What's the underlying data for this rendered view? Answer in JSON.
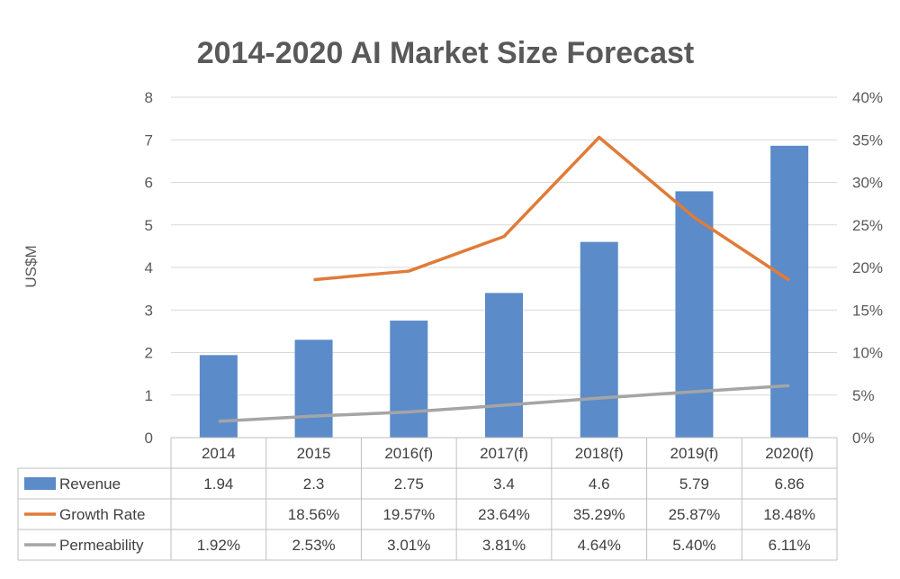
{
  "chart_data": {
    "type": "bar",
    "title": "2014-2020 AI Market Size Forecast",
    "ylabel": "US$M",
    "ylim": [
      0,
      8
    ],
    "y2lim": [
      0,
      40
    ],
    "y_ticks": [
      "0",
      "1",
      "2",
      "3",
      "4",
      "5",
      "6",
      "7",
      "8"
    ],
    "y2_ticks": [
      "0%",
      "5%",
      "10%",
      "15%",
      "20%",
      "25%",
      "30%",
      "35%",
      "40%"
    ],
    "grid": true,
    "categories": [
      "2014",
      "2015",
      "2016(f)",
      "2017(f)",
      "2018(f)",
      "2019(f)",
      "2020(f)"
    ],
    "series": [
      {
        "name": "Revenue",
        "type": "bar",
        "axis": "left",
        "color": "#5B8BC9",
        "values": [
          1.94,
          2.3,
          2.75,
          3.4,
          4.6,
          5.79,
          6.86
        ],
        "labels": [
          "1.94",
          "2.3",
          "2.75",
          "3.4",
          "4.6",
          "5.79",
          "6.86"
        ]
      },
      {
        "name": "Growth Rate",
        "type": "line",
        "axis": "right",
        "color": "#E07B39",
        "values": [
          null,
          18.56,
          19.57,
          23.64,
          35.29,
          25.87,
          18.48
        ],
        "labels": [
          "",
          "18.56%",
          "19.57%",
          "23.64%",
          "35.29%",
          "25.87%",
          "18.48%"
        ]
      },
      {
        "name": "Permeability",
        "type": "line",
        "axis": "right",
        "color": "#A5A5A5",
        "values": [
          1.92,
          2.53,
          3.01,
          3.81,
          4.64,
          5.4,
          6.11
        ],
        "labels": [
          "1.92%",
          "2.53%",
          "3.01%",
          "3.81%",
          "4.64%",
          "5.40%",
          "6.11%"
        ]
      }
    ],
    "data_table": true
  }
}
